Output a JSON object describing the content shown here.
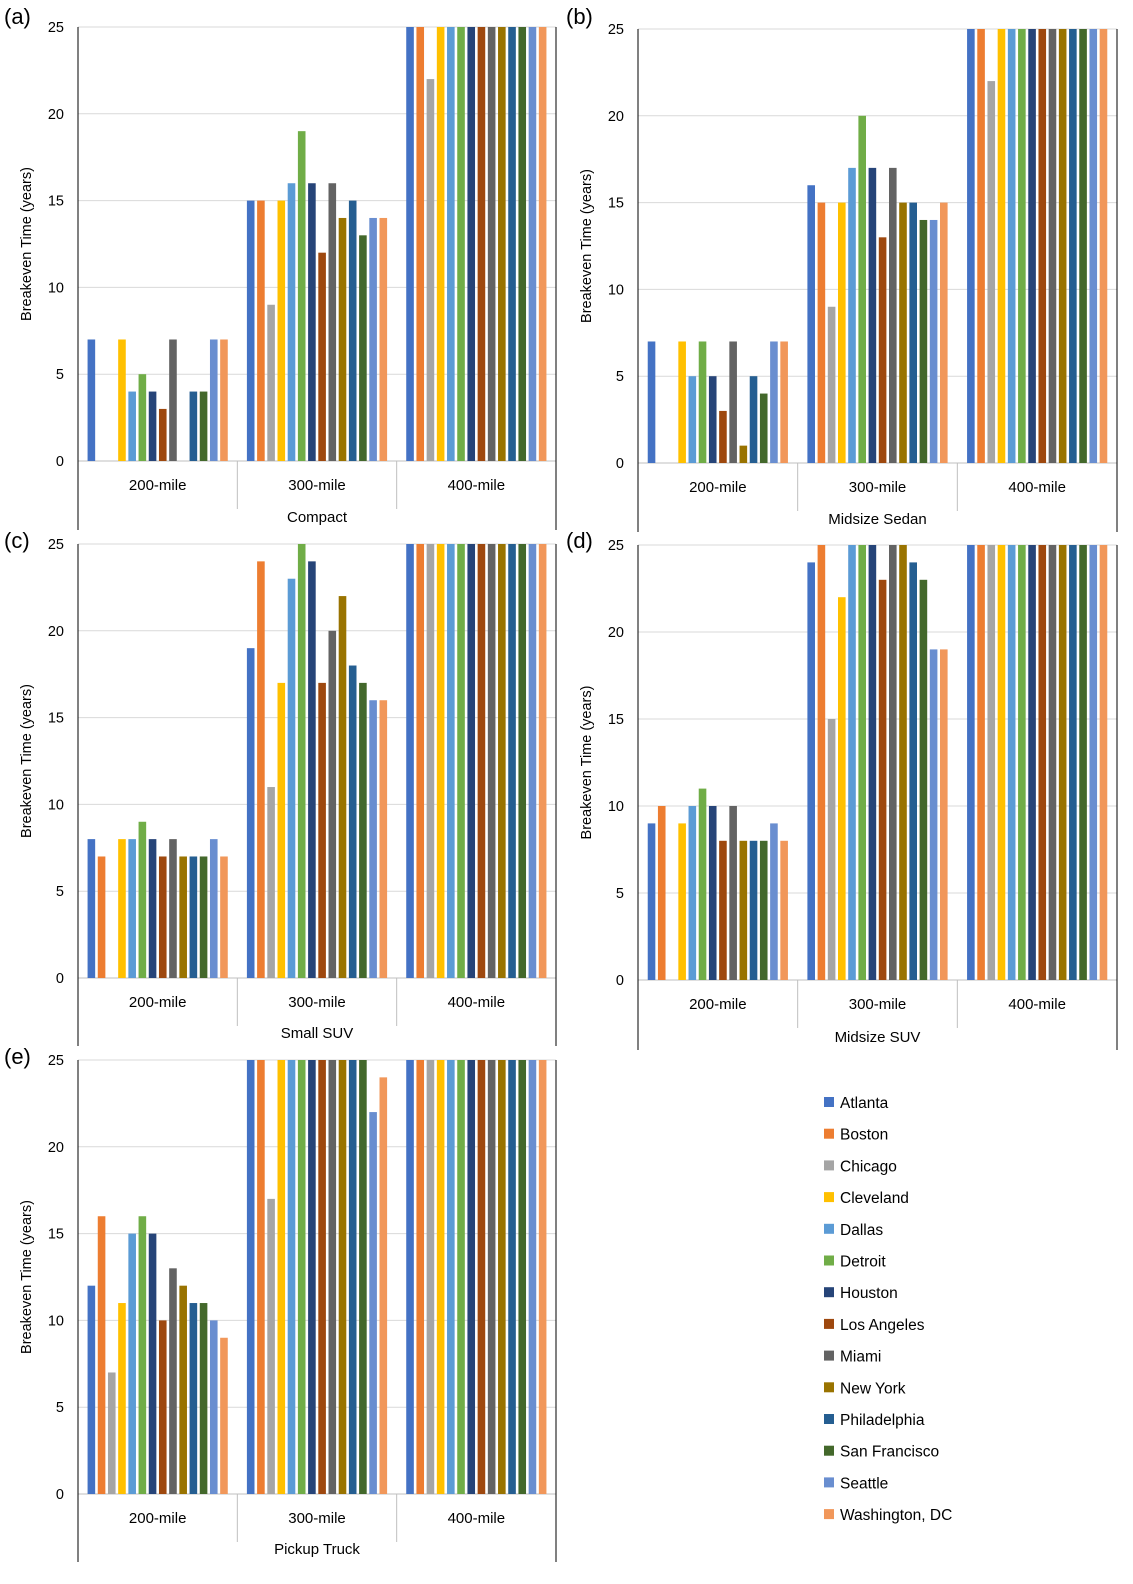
{
  "legend": [
    {
      "name": "Atlanta",
      "color": "#4472C4"
    },
    {
      "name": "Boston",
      "color": "#ED7D31"
    },
    {
      "name": "Chicago",
      "color": "#A5A5A5"
    },
    {
      "name": "Cleveland",
      "color": "#FFC000"
    },
    {
      "name": "Dallas",
      "color": "#5B9BD5"
    },
    {
      "name": "Detroit",
      "color": "#70AD47"
    },
    {
      "name": "Houston",
      "color": "#264478"
    },
    {
      "name": "Los Angeles",
      "color": "#9E480E"
    },
    {
      "name": "Miami",
      "color": "#636363"
    },
    {
      "name": "New York",
      "color": "#997300"
    },
    {
      "name": "Philadelphia",
      "color": "#255E91"
    },
    {
      "name": "San Francisco",
      "color": "#43682B"
    },
    {
      "name": "Seattle",
      "color": "#698ED0"
    },
    {
      "name": "Washington, DC",
      "color": "#F1975A"
    }
  ],
  "chart_data": [
    {
      "type": "bar",
      "panel_label": "(a)",
      "title": "",
      "xlabel": "Compact",
      "ylabel": "Breakeven Time (years)",
      "ylim": [
        0,
        25
      ],
      "yticks": [
        "0",
        "5",
        "10",
        "15",
        "20",
        "25"
      ],
      "grid": true,
      "categories": [
        "200-mile",
        "300-mile",
        "400-mile"
      ],
      "series": [
        {
          "name": "Atlanta",
          "values": [
            7,
            15,
            25
          ]
        },
        {
          "name": "Boston",
          "values": [
            0,
            15,
            25
          ]
        },
        {
          "name": "Chicago",
          "values": [
            0,
            9,
            22
          ]
        },
        {
          "name": "Cleveland",
          "values": [
            7,
            15,
            25
          ]
        },
        {
          "name": "Dallas",
          "values": [
            4,
            16,
            25
          ]
        },
        {
          "name": "Detroit",
          "values": [
            5,
            19,
            25
          ]
        },
        {
          "name": "Houston",
          "values": [
            4,
            16,
            25
          ]
        },
        {
          "name": "Los Angeles",
          "values": [
            3,
            12,
            25
          ]
        },
        {
          "name": "Miami",
          "values": [
            7,
            16,
            25
          ]
        },
        {
          "name": "New York",
          "values": [
            0,
            14,
            25
          ]
        },
        {
          "name": "Philadelphia",
          "values": [
            4,
            15,
            25
          ]
        },
        {
          "name": "San Francisco",
          "values": [
            4,
            13,
            25
          ]
        },
        {
          "name": "Seattle",
          "values": [
            7,
            14,
            25
          ]
        },
        {
          "name": "Washington, DC",
          "values": [
            7,
            14,
            25
          ]
        }
      ]
    },
    {
      "type": "bar",
      "panel_label": "(b)",
      "title": "",
      "xlabel": "Midsize Sedan",
      "ylabel": "Breakeven Time (years)",
      "ylim": [
        0,
        25
      ],
      "yticks": [
        "0",
        "5",
        "10",
        "15",
        "20",
        "25"
      ],
      "grid": true,
      "categories": [
        "200-mile",
        "300-mile",
        "400-mile"
      ],
      "series": [
        {
          "name": "Atlanta",
          "values": [
            7,
            16,
            25
          ]
        },
        {
          "name": "Boston",
          "values": [
            0,
            15,
            25
          ]
        },
        {
          "name": "Chicago",
          "values": [
            0,
            9,
            22
          ]
        },
        {
          "name": "Cleveland",
          "values": [
            7,
            15,
            25
          ]
        },
        {
          "name": "Dallas",
          "values": [
            5,
            17,
            25
          ]
        },
        {
          "name": "Detroit",
          "values": [
            7,
            20,
            25
          ]
        },
        {
          "name": "Houston",
          "values": [
            5,
            17,
            25
          ]
        },
        {
          "name": "Los Angeles",
          "values": [
            3,
            13,
            25
          ]
        },
        {
          "name": "Miami",
          "values": [
            7,
            17,
            25
          ]
        },
        {
          "name": "New York",
          "values": [
            1,
            15,
            25
          ]
        },
        {
          "name": "Philadelphia",
          "values": [
            5,
            15,
            25
          ]
        },
        {
          "name": "San Francisco",
          "values": [
            4,
            14,
            25
          ]
        },
        {
          "name": "Seattle",
          "values": [
            7,
            14,
            25
          ]
        },
        {
          "name": "Washington, DC",
          "values": [
            7,
            15,
            25
          ]
        }
      ]
    },
    {
      "type": "bar",
      "panel_label": "(c)",
      "title": "",
      "xlabel": "Small SUV",
      "ylabel": "Breakeven Time (years)",
      "ylim": [
        0,
        25
      ],
      "yticks": [
        "0",
        "5",
        "10",
        "15",
        "20",
        "25"
      ],
      "grid": true,
      "categories": [
        "200-mile",
        "300-mile",
        "400-mile"
      ],
      "series": [
        {
          "name": "Atlanta",
          "values": [
            8,
            19,
            25
          ]
        },
        {
          "name": "Boston",
          "values": [
            7,
            24,
            25
          ]
        },
        {
          "name": "Chicago",
          "values": [
            0,
            11,
            25
          ]
        },
        {
          "name": "Cleveland",
          "values": [
            8,
            17,
            25
          ]
        },
        {
          "name": "Dallas",
          "values": [
            8,
            23,
            25
          ]
        },
        {
          "name": "Detroit",
          "values": [
            9,
            25,
            25
          ]
        },
        {
          "name": "Houston",
          "values": [
            8,
            24,
            25
          ]
        },
        {
          "name": "Los Angeles",
          "values": [
            7,
            17,
            25
          ]
        },
        {
          "name": "Miami",
          "values": [
            8,
            20,
            25
          ]
        },
        {
          "name": "New York",
          "values": [
            7,
            22,
            25
          ]
        },
        {
          "name": "Philadelphia",
          "values": [
            7,
            18,
            25
          ]
        },
        {
          "name": "San Francisco",
          "values": [
            7,
            17,
            25
          ]
        },
        {
          "name": "Seattle",
          "values": [
            8,
            16,
            25
          ]
        },
        {
          "name": "Washington, DC",
          "values": [
            7,
            16,
            25
          ]
        }
      ]
    },
    {
      "type": "bar",
      "panel_label": "(d)",
      "title": "",
      "xlabel": "Midsize SUV",
      "ylabel": "Breakeven Time (years)",
      "ylim": [
        0,
        25
      ],
      "yticks": [
        "0",
        "5",
        "10",
        "15",
        "20",
        "25"
      ],
      "grid": true,
      "categories": [
        "200-mile",
        "300-mile",
        "400-mile"
      ],
      "series": [
        {
          "name": "Atlanta",
          "values": [
            9,
            24,
            25
          ]
        },
        {
          "name": "Boston",
          "values": [
            10,
            25,
            25
          ]
        },
        {
          "name": "Chicago",
          "values": [
            0,
            15,
            25
          ]
        },
        {
          "name": "Cleveland",
          "values": [
            9,
            22,
            25
          ]
        },
        {
          "name": "Dallas",
          "values": [
            10,
            25,
            25
          ]
        },
        {
          "name": "Detroit",
          "values": [
            11,
            25,
            25
          ]
        },
        {
          "name": "Houston",
          "values": [
            10,
            25,
            25
          ]
        },
        {
          "name": "Los Angeles",
          "values": [
            8,
            23,
            25
          ]
        },
        {
          "name": "Miami",
          "values": [
            10,
            25,
            25
          ]
        },
        {
          "name": "New York",
          "values": [
            8,
            25,
            25
          ]
        },
        {
          "name": "Philadelphia",
          "values": [
            8,
            24,
            25
          ]
        },
        {
          "name": "San Francisco",
          "values": [
            8,
            23,
            25
          ]
        },
        {
          "name": "Seattle",
          "values": [
            9,
            19,
            25
          ]
        },
        {
          "name": "Washington, DC",
          "values": [
            8,
            19,
            25
          ]
        }
      ]
    },
    {
      "type": "bar",
      "panel_label": "(e)",
      "title": "",
      "xlabel": "Pickup Truck",
      "ylabel": "Breakeven Time (years)",
      "ylim": [
        0,
        25
      ],
      "yticks": [
        "0",
        "5",
        "10",
        "15",
        "20",
        "25"
      ],
      "grid": true,
      "categories": [
        "200-mile",
        "300-mile",
        "400-mile"
      ],
      "series": [
        {
          "name": "Atlanta",
          "values": [
            12,
            25,
            25
          ]
        },
        {
          "name": "Boston",
          "values": [
            16,
            25,
            25
          ]
        },
        {
          "name": "Chicago",
          "values": [
            7,
            17,
            25
          ]
        },
        {
          "name": "Cleveland",
          "values": [
            11,
            25,
            25
          ]
        },
        {
          "name": "Dallas",
          "values": [
            15,
            25,
            25
          ]
        },
        {
          "name": "Detroit",
          "values": [
            16,
            25,
            25
          ]
        },
        {
          "name": "Houston",
          "values": [
            15,
            25,
            25
          ]
        },
        {
          "name": "Los Angeles",
          "values": [
            10,
            25,
            25
          ]
        },
        {
          "name": "Miami",
          "values": [
            13,
            25,
            25
          ]
        },
        {
          "name": "New York",
          "values": [
            12,
            25,
            25
          ]
        },
        {
          "name": "Philadelphia",
          "values": [
            11,
            25,
            25
          ]
        },
        {
          "name": "San Francisco",
          "values": [
            11,
            25,
            25
          ]
        },
        {
          "name": "Seattle",
          "values": [
            10,
            22,
            25
          ]
        },
        {
          "name": "Washington, DC",
          "values": [
            9,
            24,
            25
          ]
        }
      ]
    }
  ]
}
